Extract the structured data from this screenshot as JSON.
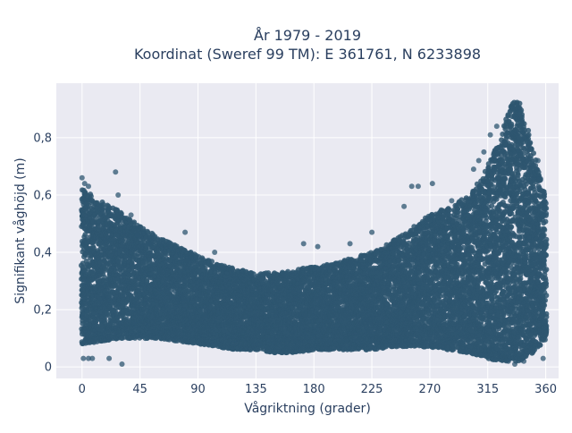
{
  "chart_data": {
    "type": "scatter",
    "title_line1": "År 1979 - 2019",
    "title_line2": "Koordinat (Sweref 99 TM): E 361761, N 6233898",
    "xlabel": "Vågriktning (grader)",
    "ylabel": "Signifikant våghöjd (m)",
    "xlim": [
      -20,
      370
    ],
    "ylim": [
      -0.04,
      0.99
    ],
    "xticks": [
      0,
      45,
      90,
      135,
      180,
      225,
      270,
      315,
      360
    ],
    "xtick_labels": [
      "0",
      "45",
      "90",
      "135",
      "180",
      "225",
      "270",
      "315",
      "360"
    ],
    "yticks": [
      0,
      0.2,
      0.4,
      0.6,
      0.8
    ],
    "ytick_labels": [
      "0",
      "0,2",
      "0,4",
      "0,6",
      "0,8"
    ],
    "grid": true,
    "colors": {
      "marker": "#2e5670",
      "plot_background": "#eaeaf2",
      "grid": "#ffffff",
      "text": "#2a3f5f"
    },
    "envelope_x": [
      0,
      15,
      30,
      45,
      60,
      75,
      90,
      105,
      120,
      135,
      150,
      165,
      180,
      195,
      210,
      225,
      240,
      255,
      270,
      285,
      300,
      315,
      325,
      330,
      335,
      340,
      345,
      350,
      355,
      360
    ],
    "envelope_low": [
      0.08,
      0.09,
      0.1,
      0.1,
      0.1,
      0.09,
      0.08,
      0.07,
      0.06,
      0.06,
      0.05,
      0.05,
      0.06,
      0.06,
      0.06,
      0.06,
      0.07,
      0.07,
      0.07,
      0.06,
      0.05,
      0.03,
      0.02,
      0.02,
      0.02,
      0.02,
      0.03,
      0.05,
      0.07,
      0.1
    ],
    "envelope_high": [
      0.62,
      0.58,
      0.54,
      0.49,
      0.45,
      0.42,
      0.39,
      0.36,
      0.34,
      0.33,
      0.33,
      0.34,
      0.35,
      0.36,
      0.38,
      0.4,
      0.44,
      0.48,
      0.53,
      0.56,
      0.6,
      0.7,
      0.8,
      0.88,
      0.93,
      0.92,
      0.85,
      0.75,
      0.68,
      0.6
    ],
    "outliers": [
      {
        "x": 0,
        "y": 0.66
      },
      {
        "x": 2,
        "y": 0.64
      },
      {
        "x": 5,
        "y": 0.63
      },
      {
        "x": 26,
        "y": 0.68
      },
      {
        "x": 28,
        "y": 0.6
      },
      {
        "x": 38,
        "y": 0.53
      },
      {
        "x": 43,
        "y": 0.46
      },
      {
        "x": 52,
        "y": 0.43
      },
      {
        "x": 80,
        "y": 0.47
      },
      {
        "x": 103,
        "y": 0.4
      },
      {
        "x": 172,
        "y": 0.43
      },
      {
        "x": 183,
        "y": 0.42
      },
      {
        "x": 208,
        "y": 0.43
      },
      {
        "x": 225,
        "y": 0.47
      },
      {
        "x": 250,
        "y": 0.56
      },
      {
        "x": 256,
        "y": 0.63
      },
      {
        "x": 261,
        "y": 0.63
      },
      {
        "x": 272,
        "y": 0.64
      },
      {
        "x": 287,
        "y": 0.58
      },
      {
        "x": 304,
        "y": 0.69
      },
      {
        "x": 308,
        "y": 0.72
      },
      {
        "x": 312,
        "y": 0.75
      },
      {
        "x": 317,
        "y": 0.81
      },
      {
        "x": 322,
        "y": 0.84
      },
      {
        "x": 354,
        "y": 0.72
      },
      {
        "x": 1,
        "y": 0.03
      },
      {
        "x": 5,
        "y": 0.03
      },
      {
        "x": 8,
        "y": 0.03
      },
      {
        "x": 21,
        "y": 0.03
      },
      {
        "x": 31,
        "y": 0.01
      },
      {
        "x": 331,
        "y": 0.02
      },
      {
        "x": 336,
        "y": 0.01
      },
      {
        "x": 343,
        "y": 0.02
      },
      {
        "x": 358,
        "y": 0.03
      }
    ]
  }
}
